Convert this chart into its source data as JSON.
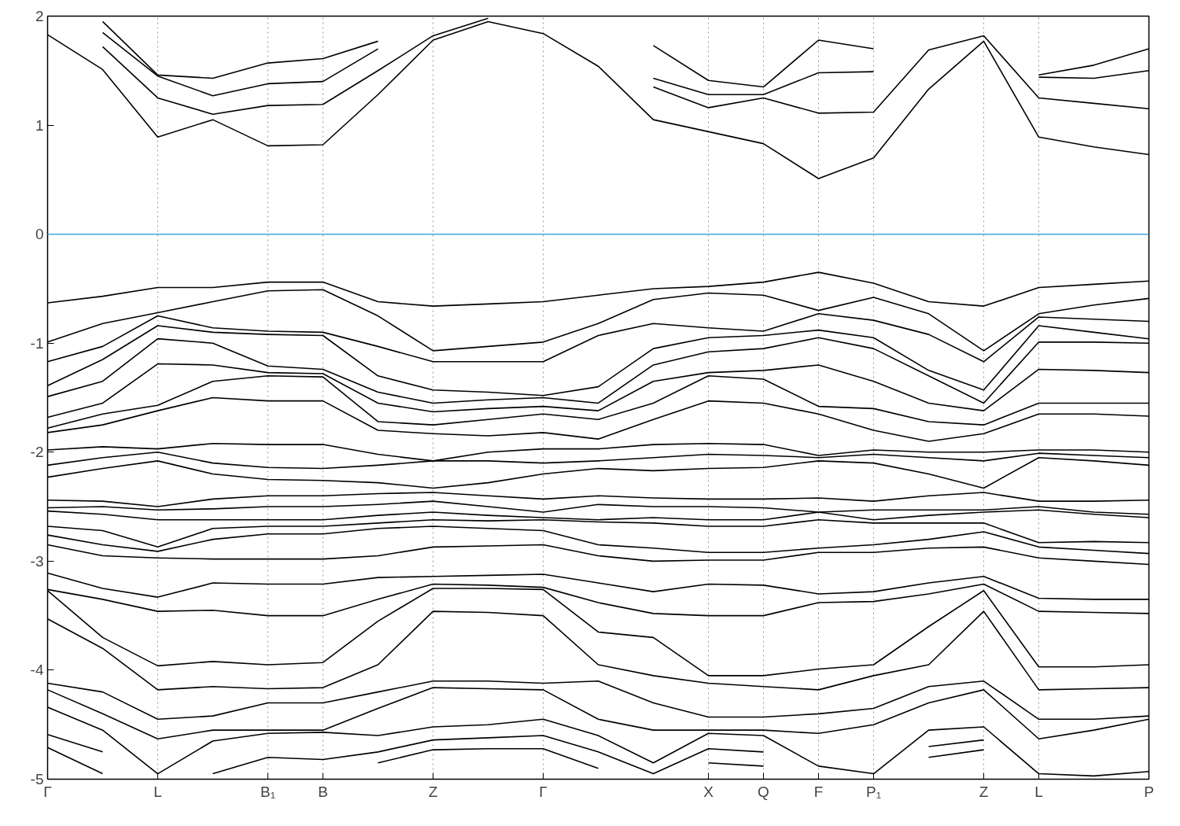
{
  "chart_data": {
    "type": "line",
    "categories": [
      "Γ",
      null,
      "L",
      null,
      "B₁",
      "B",
      null,
      "Z",
      null,
      "Γ",
      null,
      null,
      "X",
      "Q",
      "F",
      "P₁",
      null,
      "Z",
      "L",
      null,
      "P"
    ],
    "ylim": [
      -5,
      2
    ],
    "yticks": [
      -5,
      -4,
      -3,
      -2,
      -1,
      0,
      1,
      2
    ],
    "grid": "x",
    "marker": "none",
    "line_style": "solid",
    "ref_lines": [
      {
        "axis": "y",
        "value": 0,
        "color": "#45a5dc",
        "line_style": "solid"
      }
    ],
    "series": [
      {
        "color": "#000000",
        "values": [
          1.83,
          1.51,
          0.89,
          1.05,
          0.81,
          0.82,
          1.28,
          1.78,
          1.95,
          1.84,
          1.54,
          1.05,
          0.94,
          0.83,
          0.51,
          0.7,
          1.33,
          1.77,
          0.89,
          0.8,
          0.73
        ]
      },
      {
        "color": "#000000",
        "values": [
          null,
          1.72,
          1.25,
          1.1,
          1.18,
          1.19,
          1.5,
          1.82,
          1.98,
          null,
          null,
          1.35,
          1.16,
          1.25,
          1.11,
          1.12,
          1.69,
          1.82,
          1.25,
          1.2,
          1.15
        ]
      },
      {
        "color": "#000000",
        "values": [
          null,
          1.85,
          1.45,
          1.27,
          1.38,
          1.4,
          1.7,
          null,
          null,
          null,
          null,
          1.43,
          1.28,
          1.28,
          1.48,
          1.49,
          null,
          null,
          1.44,
          1.43,
          1.5
        ]
      },
      {
        "color": "#000000",
        "values": [
          null,
          1.95,
          1.46,
          1.43,
          1.57,
          1.61,
          1.77,
          null,
          null,
          null,
          null,
          1.73,
          1.41,
          1.35,
          1.78,
          1.7,
          null,
          null,
          1.46,
          1.55,
          1.7
        ]
      },
      {
        "color": "#000000",
        "values": [
          -0.63,
          -0.57,
          -0.49,
          -0.49,
          -0.44,
          -0.44,
          -0.62,
          -0.66,
          -0.64,
          -0.62,
          -0.56,
          -0.5,
          -0.48,
          -0.44,
          -0.35,
          -0.45,
          -0.62,
          -0.66,
          -0.49,
          -0.46,
          -0.43
        ]
      },
      {
        "color": "#000000",
        "values": [
          -0.99,
          -0.82,
          -0.72,
          -0.62,
          -0.52,
          -0.51,
          -0.75,
          -1.07,
          -1.03,
          -0.99,
          -0.82,
          -0.6,
          -0.54,
          -0.56,
          -0.7,
          -0.58,
          -0.73,
          -1.07,
          -0.73,
          -0.65,
          -0.59
        ]
      },
      {
        "color": "#000000",
        "values": [
          -1.17,
          -1.03,
          -0.75,
          -0.86,
          -0.89,
          -0.9,
          -1.03,
          -1.17,
          -1.17,
          -1.17,
          -0.93,
          -0.82,
          -0.86,
          -0.89,
          -0.73,
          -0.79,
          -0.92,
          -1.17,
          -0.76,
          -0.78,
          -0.8
        ]
      },
      {
        "color": "#000000",
        "values": [
          -1.39,
          -1.15,
          -0.84,
          -0.9,
          -0.92,
          -0.93,
          -1.3,
          -1.43,
          -1.45,
          -1.48,
          -1.4,
          -1.05,
          -0.95,
          -0.93,
          -0.88,
          -0.95,
          -1.25,
          -1.43,
          -0.84,
          -0.9,
          -0.96
        ]
      },
      {
        "color": "#000000",
        "values": [
          -1.49,
          -1.35,
          -0.96,
          -1.0,
          -1.21,
          -1.24,
          -1.45,
          -1.55,
          -1.52,
          -1.5,
          -1.55,
          -1.2,
          -1.08,
          -1.05,
          -0.95,
          -1.05,
          -1.3,
          -1.55,
          -0.99,
          -0.99,
          -1.0
        ]
      },
      {
        "color": "#000000",
        "values": [
          -1.68,
          -1.55,
          -1.19,
          -1.2,
          -1.27,
          -1.28,
          -1.55,
          -1.63,
          -1.6,
          -1.58,
          -1.62,
          -1.35,
          -1.27,
          -1.25,
          -1.2,
          -1.35,
          -1.55,
          -1.62,
          -1.24,
          -1.25,
          -1.27
        ]
      },
      {
        "color": "#000000",
        "values": [
          -1.78,
          -1.65,
          -1.57,
          -1.35,
          -1.3,
          -1.31,
          -1.72,
          -1.75,
          -1.7,
          -1.65,
          -1.7,
          -1.55,
          -1.3,
          -1.33,
          -1.58,
          -1.6,
          -1.72,
          -1.75,
          -1.55,
          -1.55,
          -1.55
        ]
      },
      {
        "color": "#000000",
        "values": [
          -1.82,
          -1.75,
          -1.62,
          -1.5,
          -1.53,
          -1.53,
          -1.8,
          -1.83,
          -1.85,
          -1.82,
          -1.88,
          -1.7,
          -1.53,
          -1.55,
          -1.65,
          -1.8,
          -1.9,
          -1.83,
          -1.65,
          -1.65,
          -1.67
        ]
      },
      {
        "color": "#000000",
        "values": [
          -1.98,
          -1.95,
          -1.97,
          -1.92,
          -1.93,
          -1.93,
          -2.02,
          -2.08,
          -2.0,
          -1.97,
          -1.97,
          -1.93,
          -1.92,
          -1.93,
          -2.03,
          -1.98,
          -2.0,
          -2.0,
          -1.98,
          -1.98,
          -2.0
        ]
      },
      {
        "color": "#000000",
        "values": [
          -2.12,
          -2.05,
          -2.0,
          -2.1,
          -2.14,
          -2.15,
          -2.12,
          -2.08,
          -2.08,
          -2.1,
          -2.08,
          -2.05,
          -2.02,
          -2.03,
          -2.05,
          -2.02,
          -2.05,
          -2.08,
          -2.01,
          -2.03,
          -2.05
        ]
      },
      {
        "color": "#000000",
        "values": [
          -2.23,
          -2.15,
          -2.08,
          -2.2,
          -2.25,
          -2.26,
          -2.28,
          -2.33,
          -2.28,
          -2.2,
          -2.15,
          -2.17,
          -2.15,
          -2.14,
          -2.08,
          -2.1,
          -2.2,
          -2.33,
          -2.05,
          -2.08,
          -2.12
        ]
      },
      {
        "color": "#000000",
        "values": [
          -2.44,
          -2.45,
          -2.5,
          -2.43,
          -2.4,
          -2.4,
          -2.38,
          -2.37,
          -2.4,
          -2.43,
          -2.4,
          -2.42,
          -2.43,
          -2.43,
          -2.42,
          -2.45,
          -2.4,
          -2.37,
          -2.45,
          -2.45,
          -2.44
        ]
      },
      {
        "color": "#000000",
        "values": [
          -2.51,
          -2.5,
          -2.53,
          -2.52,
          -2.5,
          -2.5,
          -2.48,
          -2.45,
          -2.5,
          -2.55,
          -2.48,
          -2.5,
          -2.5,
          -2.51,
          -2.55,
          -2.53,
          -2.53,
          -2.53,
          -2.5,
          -2.55,
          -2.57
        ]
      },
      {
        "color": "#000000",
        "values": [
          -2.54,
          -2.57,
          -2.62,
          -2.62,
          -2.62,
          -2.62,
          -2.58,
          -2.55,
          -2.58,
          -2.6,
          -2.62,
          -2.6,
          -2.62,
          -2.62,
          -2.55,
          -2.62,
          -2.58,
          -2.55,
          -2.53,
          -2.57,
          -2.6
        ]
      },
      {
        "color": "#000000",
        "values": [
          -2.68,
          -2.72,
          -2.87,
          -2.7,
          -2.68,
          -2.68,
          -2.65,
          -2.62,
          -2.63,
          -2.62,
          -2.64,
          -2.65,
          -2.68,
          -2.68,
          -2.62,
          -2.65,
          -2.65,
          -2.65,
          -2.83,
          -2.82,
          -2.83
        ]
      },
      {
        "color": "#000000",
        "values": [
          -2.76,
          -2.85,
          -2.91,
          -2.8,
          -2.75,
          -2.75,
          -2.7,
          -2.68,
          -2.7,
          -2.72,
          -2.85,
          -2.88,
          -2.92,
          -2.92,
          -2.88,
          -2.85,
          -2.8,
          -2.73,
          -2.87,
          -2.9,
          -2.93
        ]
      },
      {
        "color": "#000000",
        "values": [
          -2.85,
          -2.95,
          -2.97,
          -2.98,
          -2.98,
          -2.98,
          -2.95,
          -2.87,
          -2.86,
          -2.85,
          -2.95,
          -3.0,
          -2.99,
          -2.99,
          -2.92,
          -2.92,
          -2.88,
          -2.87,
          -2.97,
          -3.0,
          -3.03
        ]
      },
      {
        "color": "#000000",
        "values": [
          -3.11,
          -3.25,
          -3.33,
          -3.2,
          -3.21,
          -3.21,
          -3.15,
          -3.14,
          -3.13,
          -3.12,
          -3.2,
          -3.28,
          -3.21,
          -3.22,
          -3.3,
          -3.28,
          -3.2,
          -3.14,
          -3.34,
          -3.35,
          -3.35
        ]
      },
      {
        "color": "#000000",
        "values": [
          -3.26,
          -3.35,
          -3.46,
          -3.45,
          -3.5,
          -3.5,
          -3.35,
          -3.21,
          -3.22,
          -3.24,
          -3.38,
          -3.48,
          -3.5,
          -3.5,
          -3.38,
          -3.37,
          -3.3,
          -3.21,
          -3.46,
          -3.47,
          -3.48
        ]
      },
      {
        "color": "#000000",
        "values": [
          -3.27,
          -3.7,
          -3.96,
          -3.92,
          -3.95,
          -3.93,
          -3.55,
          -3.25,
          -3.25,
          -3.26,
          -3.65,
          -3.7,
          -4.05,
          -4.05,
          -3.99,
          -3.95,
          -3.6,
          -3.27,
          -3.97,
          -3.97,
          -3.95
        ]
      },
      {
        "color": "#000000",
        "values": [
          -3.53,
          -3.8,
          -4.18,
          -4.15,
          -4.17,
          -4.16,
          -3.95,
          -3.46,
          -3.47,
          -3.5,
          -3.95,
          -4.05,
          -4.12,
          -4.15,
          -4.18,
          -4.05,
          -3.95,
          -3.46,
          -4.18,
          -4.17,
          -4.16
        ]
      },
      {
        "color": "#000000",
        "values": [
          -4.12,
          -4.2,
          -4.45,
          -4.42,
          -4.3,
          -4.3,
          -4.2,
          -4.1,
          -4.1,
          -4.12,
          -4.1,
          -4.3,
          -4.43,
          -4.43,
          -4.4,
          -4.35,
          -4.15,
          -4.1,
          -4.45,
          -4.45,
          -4.42
        ]
      },
      {
        "color": "#000000",
        "values": [
          -4.18,
          -4.4,
          -4.63,
          -4.55,
          -4.55,
          -4.55,
          -4.35,
          -4.16,
          -4.17,
          -4.18,
          -4.45,
          -4.55,
          -4.55,
          -4.55,
          -4.58,
          -4.5,
          -4.3,
          -4.18,
          -4.63,
          -4.55,
          -4.45
        ]
      },
      {
        "color": "#000000",
        "values": [
          -4.34,
          -4.55,
          -4.95,
          -4.65,
          -4.58,
          -4.57,
          -4.6,
          -4.52,
          -4.5,
          -4.45,
          -4.6,
          -4.85,
          -4.58,
          -4.6,
          -4.88,
          -4.95,
          -4.55,
          -4.52,
          -4.95,
          -4.97,
          -4.93
        ]
      },
      {
        "color": "#000000",
        "values": [
          -4.59,
          -4.75,
          null,
          -4.95,
          -4.8,
          -4.82,
          -4.75,
          -4.64,
          -4.62,
          -4.6,
          -4.75,
          -4.95,
          -4.72,
          -4.75,
          null,
          null,
          -4.7,
          -4.64,
          null,
          null,
          null
        ]
      },
      {
        "color": "#000000",
        "values": [
          -4.71,
          -4.95,
          null,
          null,
          null,
          null,
          -4.85,
          -4.73,
          -4.72,
          -4.72,
          -4.9,
          null,
          -4.85,
          -4.88,
          null,
          null,
          -4.8,
          -4.73,
          null,
          null,
          null
        ]
      }
    ]
  }
}
